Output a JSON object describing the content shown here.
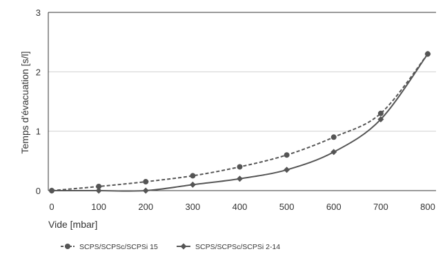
{
  "chart_data": {
    "type": "line",
    "xlabel": "Vide [mbar]",
    "ylabel": "Temps d'évacuation [s/l]",
    "x_ticks": [
      "0",
      "100",
      "200",
      "300",
      "400",
      "500",
      "600",
      "700",
      "800"
    ],
    "y_ticks": [
      "0",
      "1",
      "2",
      "3"
    ],
    "xlim": [
      0,
      800
    ],
    "ylim": [
      0,
      3
    ],
    "grid": "horizontal",
    "legend_position": "bottom-left",
    "series": [
      {
        "name": "SCPS/SCPSc/SCPSi 15",
        "marker": "circle",
        "line_style": "dashed",
        "color": "#555555",
        "x": [
          0,
          100,
          200,
          300,
          400,
          500,
          600,
          700,
          800
        ],
        "y": [
          0.0,
          0.07,
          0.15,
          0.25,
          0.4,
          0.6,
          0.9,
          1.3,
          2.3
        ]
      },
      {
        "name": "SCPS/SCPSc/SCPSi 2-14",
        "marker": "diamond",
        "line_style": "solid",
        "color": "#555555",
        "x": [
          0,
          100,
          200,
          300,
          400,
          500,
          600,
          700,
          800
        ],
        "y": [
          0.0,
          0.0,
          0.0,
          0.1,
          0.2,
          0.35,
          0.65,
          1.2,
          2.3
        ]
      }
    ]
  }
}
